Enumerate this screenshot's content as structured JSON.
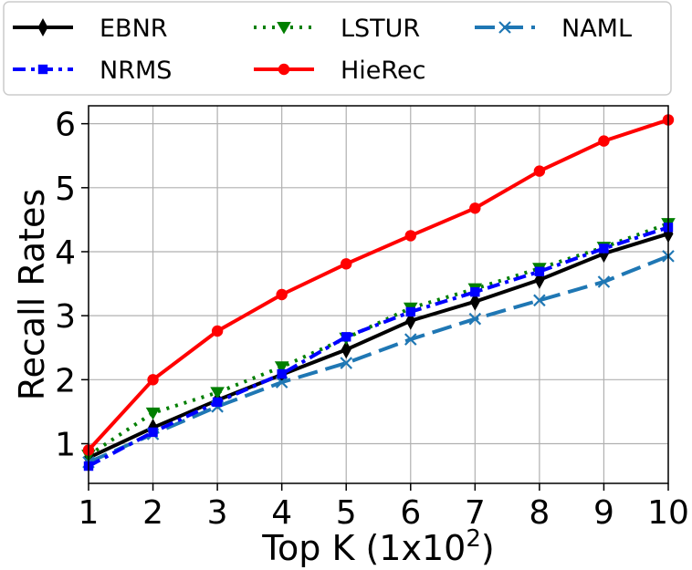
{
  "chart_data": {
    "type": "line",
    "xlabel": "Top K (1x10",
    "xlabel_sup": "2",
    "xlabel_close": ")",
    "ylabel": "Recall Rates",
    "x": [
      1,
      2,
      3,
      4,
      5,
      6,
      7,
      8,
      9,
      10
    ],
    "xlim": [
      1,
      10
    ],
    "ylim": [
      0.38,
      6.28
    ],
    "xticks": [
      "1",
      "2",
      "3",
      "4",
      "5",
      "6",
      "7",
      "8",
      "9",
      "10"
    ],
    "yticks": [
      "1",
      "2",
      "3",
      "4",
      "5",
      "6"
    ],
    "grid": true,
    "legend_position": "top",
    "series": [
      {
        "name": "EBNR",
        "color": "#000000",
        "marker": "diamond",
        "dash": "solid",
        "values": [
          0.78,
          1.25,
          1.68,
          2.08,
          2.47,
          2.92,
          3.22,
          3.56,
          3.97,
          4.28
        ]
      },
      {
        "name": "LSTUR",
        "color": "#007f00",
        "marker": "triangle-down",
        "dash": "dotted",
        "values": [
          0.82,
          1.48,
          1.8,
          2.2,
          2.65,
          3.12,
          3.42,
          3.74,
          4.07,
          4.44
        ]
      },
      {
        "name": "NAML",
        "color": "#1f77b4",
        "marker": "x",
        "dash": "dashed",
        "values": [
          0.71,
          1.15,
          1.58,
          1.96,
          2.26,
          2.63,
          2.95,
          3.24,
          3.53,
          3.93
        ]
      },
      {
        "name": "NRMS",
        "color": "#0000ff",
        "marker": "square",
        "dash": "dashdot",
        "values": [
          0.65,
          1.18,
          1.65,
          2.09,
          2.67,
          3.06,
          3.37,
          3.69,
          4.05,
          4.38
        ]
      },
      {
        "name": "HieRec",
        "color": "#ff0000",
        "marker": "circle",
        "dash": "solid",
        "values": [
          0.9,
          2.0,
          2.76,
          3.33,
          3.81,
          4.25,
          4.68,
          5.26,
          5.73,
          6.06
        ]
      }
    ]
  }
}
